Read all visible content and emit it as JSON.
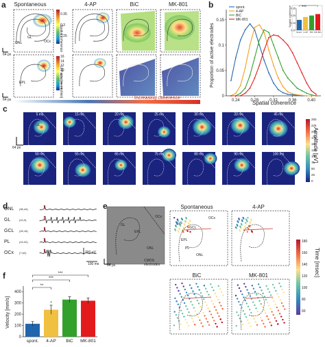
{
  "panel_a": {
    "label": "a",
    "conditions": [
      "Spontaneous",
      "4-AP",
      "BiC",
      "MK-801"
    ],
    "region_labels": {
      "onl": "ONL",
      "gl": "GL",
      "ocx": "OCx",
      "epl": "EPL"
    },
    "scale_label": "64 px",
    "cbar_top_label": "Spatial coherence",
    "cbar_top_ticks": [
      "0.35",
      "0.3",
      "0.25"
    ],
    "cbar_bottom_label": "LFP rate [events/min]",
    "cbar_bottom_ticks": [
      "16",
      "14",
      "12",
      "10",
      "8",
      "6",
      "4",
      "2"
    ],
    "gradient_label": "Increasing coherence",
    "cbar_top_colors": [
      "#b2182b",
      "#f4a82a",
      "#ffff66",
      "#66c266",
      "#1a9fd8",
      "#1f2a8a"
    ]
  },
  "panel_b": {
    "label": "b",
    "legend": [
      "spont.",
      "4-AP",
      "BiC",
      "MK-801"
    ],
    "ylabel": "Proportion of active electrodes",
    "xlabel": "Spatial coherence",
    "xticks": [
      "0.24",
      "0.28",
      "0.32",
      "0.36",
      "0.40"
    ],
    "yticks": [
      "0.15",
      "0.1",
      "0.05",
      "0"
    ],
    "inset_ylabel": "Spatial coherence",
    "inset_yticks": [
      "0.35",
      "0.30",
      "0.25",
      "0.20"
    ],
    "inset_categories": [
      "Spont.",
      "4-AP",
      "BiC",
      "MK-801"
    ],
    "inset_sig": "***"
  },
  "panel_c": {
    "label": "c",
    "times_row1": [
      "5 ms",
      "15 ms",
      "20 ms",
      "25 ms",
      "30 ms",
      "33 ms",
      "45 ms"
    ],
    "times_row2": [
      "50 ms",
      "55 ms",
      "65 ms",
      "75 ms",
      "80 ms",
      "90 ms",
      "100 ms"
    ],
    "region_labels": {
      "gl": "GL",
      "ocx": "OCx"
    },
    "scale_label": "64 px",
    "cbar_label": "Amplitude [μV]",
    "cbar_ticks": [
      "250",
      "225",
      "200",
      "175",
      "150",
      "125",
      "100",
      "75",
      "50",
      "25",
      "0"
    ]
  },
  "panel_d": {
    "label": "d",
    "traces": [
      {
        "name": "ONL",
        "coord": "(36,44)"
      },
      {
        "name": "GL",
        "coord": "(24,9)"
      },
      {
        "name": "GCL",
        "coord": "(26,18)"
      },
      {
        "name": "PL",
        "coord": "(24,32)"
      },
      {
        "name": "OCx",
        "coord": "(7,62)"
      }
    ],
    "amp_scale": "300 μV",
    "time_scale": "100 ms"
  },
  "panel_e": {
    "label": "e",
    "conditions": [
      "Spontaneous",
      "4-AP",
      "BiC",
      "MK-801"
    ],
    "image_labels": {
      "gl": "GL",
      "ocx": "OCx",
      "epl": "EPL",
      "onl": "ONL",
      "pl": "PL",
      "gcl": "GCL",
      "cmos": "CMOS electrodes"
    },
    "scale_label": "64 px",
    "cbar_label": "Time [msec]",
    "cbar_ticks": [
      "180",
      "160",
      "140",
      "120",
      "100",
      "80",
      "60"
    ]
  },
  "panel_f": {
    "label": "f",
    "ylabel": "Velocity [mm/s]",
    "yticks": [
      "400",
      "300",
      "200",
      "100",
      "0"
    ],
    "sig_marks": [
      "***",
      "***",
      "**",
      "*"
    ]
  },
  "chart_data": [
    {
      "type": "line",
      "xlabel": "Spatial coherence",
      "ylabel": "Proportion of active electrodes",
      "xlim": [
        0.22,
        0.42
      ],
      "ylim": [
        0,
        0.17
      ],
      "x": [
        0.23,
        0.24,
        0.25,
        0.26,
        0.27,
        0.28,
        0.29,
        0.3,
        0.31,
        0.32,
        0.33,
        0.34,
        0.35,
        0.36,
        0.37,
        0.38,
        0.39,
        0.4,
        0.41
      ],
      "series": [
        {
          "name": "spont.",
          "color": "#2166ac",
          "values": [
            0.03,
            0.075,
            0.11,
            0.13,
            0.142,
            0.13,
            0.1,
            0.07,
            0.045,
            0.025,
            0.012,
            0.006,
            0.003,
            0.002,
            0.001,
            0.0,
            0.0,
            0.0,
            0.0
          ]
        },
        {
          "name": "4-AP",
          "color": "#f0a020",
          "values": [
            0.0,
            0.005,
            0.02,
            0.055,
            0.1,
            0.135,
            0.14,
            0.125,
            0.09,
            0.06,
            0.035,
            0.018,
            0.008,
            0.004,
            0.002,
            0.001,
            0.0,
            0.0,
            0.0
          ]
        },
        {
          "name": "BiC",
          "color": "#33a02c",
          "values": [
            0.0,
            0.0,
            0.005,
            0.015,
            0.04,
            0.075,
            0.11,
            0.13,
            0.125,
            0.1,
            0.075,
            0.05,
            0.035,
            0.025,
            0.015,
            0.01,
            0.005,
            0.002,
            0.0
          ]
        },
        {
          "name": "MK-801",
          "color": "#e31a1c",
          "values": [
            0.0,
            0.0,
            0.0,
            0.005,
            0.015,
            0.035,
            0.06,
            0.09,
            0.115,
            0.12,
            0.118,
            0.11,
            0.1,
            0.085,
            0.065,
            0.045,
            0.025,
            0.01,
            0.003
          ]
        }
      ]
    },
    {
      "type": "bar",
      "ylabel": "Spatial coherence",
      "categories": [
        "Spont.",
        "4-AP",
        "BiC",
        "MK-801"
      ],
      "values": [
        0.27,
        0.29,
        0.3,
        0.31
      ],
      "ylim": [
        0.2,
        0.35
      ],
      "colors": [
        "#2166ac",
        "#f0c040",
        "#33a02c",
        "#e31a1c"
      ]
    },
    {
      "type": "bar",
      "ylabel": "Velocity [mm/s]",
      "categories": [
        "spont.",
        "4-AP",
        "BiC",
        "MK-801"
      ],
      "values": [
        115,
        240,
        330,
        320
      ],
      "errors": [
        20,
        40,
        25,
        25
      ],
      "ylim": [
        0,
        450
      ],
      "colors": [
        "#2166ac",
        "#f0c040",
        "#33a02c",
        "#e31a1c"
      ]
    }
  ]
}
